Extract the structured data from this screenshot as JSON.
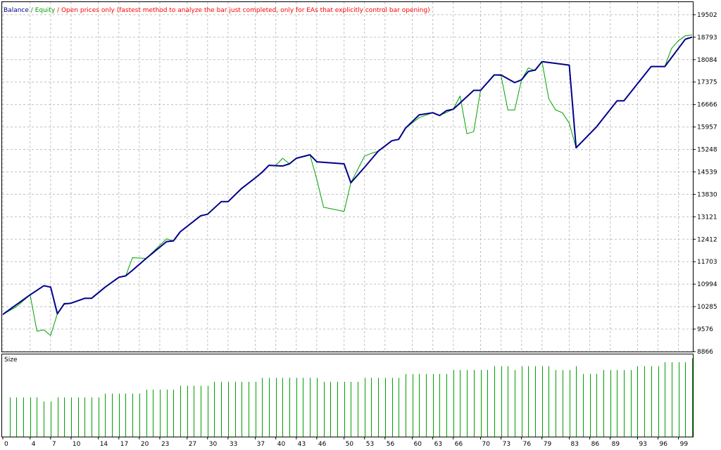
{
  "chart_data": [
    {
      "type": "line",
      "subtitle": "Open prices only (fastest method to analyze the bar just completed, only for EAs that explicitly control bar opening)",
      "legend_separator": "/",
      "xlim": [
        0,
        101
      ],
      "ylim": [
        8866,
        19900
      ],
      "xticks": [
        0,
        4,
        7,
        10,
        14,
        17,
        20,
        23,
        27,
        30,
        33,
        37,
        40,
        43,
        46,
        50,
        53,
        56,
        60,
        63,
        66,
        70,
        73,
        76,
        79,
        83,
        86,
        89,
        93,
        96,
        99
      ],
      "yticks": [
        19502,
        18793,
        18084,
        17375,
        16666,
        15957,
        15248,
        14539,
        13830,
        13121,
        12412,
        11703,
        10994,
        10285,
        9576,
        8866
      ],
      "grid": true,
      "series": [
        {
          "name": "Balance",
          "color": "#00008b",
          "x": [
            0,
            4,
            6,
            7,
            8,
            9,
            10,
            12,
            13,
            15,
            17,
            18,
            19,
            21,
            24,
            25,
            26,
            29,
            30,
            32,
            33,
            35,
            37,
            38,
            39,
            41,
            42,
            43,
            45,
            46,
            50,
            51,
            53,
            55,
            57,
            58,
            59,
            61,
            63,
            64,
            65,
            66,
            68,
            69,
            70,
            72,
            73,
            75,
            76,
            77,
            78,
            79,
            83,
            84,
            87,
            90,
            91,
            95,
            97,
            100,
            101
          ],
          "values": [
            10039,
            10658,
            10945,
            10901,
            10061,
            10371,
            10393,
            10547,
            10547,
            10901,
            11211,
            11255,
            11432,
            11808,
            12338,
            12360,
            12648,
            13156,
            13201,
            13599,
            13599,
            14019,
            14350,
            14527,
            14748,
            14726,
            14793,
            14969,
            15080,
            14859,
            14793,
            14196,
            14682,
            15191,
            15522,
            15566,
            15920,
            16340,
            16407,
            16318,
            16473,
            16517,
            16915,
            17114,
            17114,
            17601,
            17601,
            17357,
            17446,
            17711,
            17755,
            18021,
            17910,
            15301,
            15964,
            16782,
            16782,
            17866,
            17866,
            18728,
            18794
          ]
        },
        {
          "name": "Equity",
          "color": "#00a000",
          "x": [
            0,
            2,
            4,
            5,
            6,
            7,
            8,
            9,
            10,
            12,
            13,
            15,
            17,
            18,
            19,
            21,
            24,
            25,
            26,
            29,
            30,
            32,
            33,
            35,
            37,
            38,
            39,
            40,
            41,
            42,
            43,
            45,
            46,
            47,
            50,
            51,
            53,
            54,
            55,
            57,
            58,
            59,
            61,
            63,
            64,
            66,
            67,
            68,
            69,
            70,
            72,
            73,
            74,
            75,
            76,
            77,
            78,
            79,
            80,
            81,
            82,
            83,
            84,
            87,
            90,
            91,
            95,
            97,
            98,
            99,
            100,
            101
          ],
          "values": [
            10039,
            10282,
            10658,
            9508,
            9552,
            9376,
            10061,
            10393,
            10393,
            10547,
            10547,
            10901,
            11211,
            11255,
            11830,
            11808,
            12427,
            12360,
            12648,
            13156,
            13201,
            13599,
            13599,
            14019,
            14350,
            14527,
            14748,
            14748,
            14969,
            14793,
            14969,
            15080,
            14306,
            13422,
            13289,
            14196,
            15036,
            15124,
            15191,
            15522,
            15566,
            15920,
            16252,
            16407,
            16318,
            16517,
            16937,
            15743,
            15810,
            17114,
            17601,
            17578,
            16495,
            16495,
            17446,
            17822,
            17733,
            18021,
            16849,
            16495,
            16407,
            16075,
            15301,
            15964,
            16782,
            16782,
            17866,
            17866,
            18441,
            18684,
            18839,
            18860
          ]
        }
      ]
    },
    {
      "type": "bar",
      "title": "Size",
      "color": "#00a000",
      "xlim": [
        -1,
        100
      ],
      "ylim": [
        0,
        0.21
      ],
      "values": [
        0.1,
        0.1,
        0.1,
        0.1,
        0.1,
        0.09,
        0.09,
        0.1,
        0.1,
        0.1,
        0.1,
        0.1,
        0.1,
        0.1,
        0.11,
        0.11,
        0.11,
        0.11,
        0.11,
        0.11,
        0.12,
        0.12,
        0.12,
        0.12,
        0.12,
        0.13,
        0.13,
        0.13,
        0.13,
        0.13,
        0.14,
        0.14,
        0.14,
        0.14,
        0.14,
        0.14,
        0.14,
        0.15,
        0.15,
        0.15,
        0.15,
        0.15,
        0.15,
        0.15,
        0.15,
        0.15,
        0.14,
        0.14,
        0.14,
        0.14,
        0.14,
        0.14,
        0.15,
        0.15,
        0.15,
        0.15,
        0.15,
        0.15,
        0.16,
        0.16,
        0.16,
        0.16,
        0.16,
        0.16,
        0.16,
        0.17,
        0.17,
        0.17,
        0.17,
        0.17,
        0.17,
        0.18,
        0.18,
        0.18,
        0.17,
        0.18,
        0.18,
        0.18,
        0.18,
        0.18,
        0.17,
        0.17,
        0.17,
        0.18,
        0.16,
        0.16,
        0.16,
        0.17,
        0.17,
        0.17,
        0.17,
        0.17,
        0.18,
        0.18,
        0.18,
        0.18,
        0.19,
        0.19,
        0.19,
        0.19,
        0.2
      ]
    }
  ]
}
